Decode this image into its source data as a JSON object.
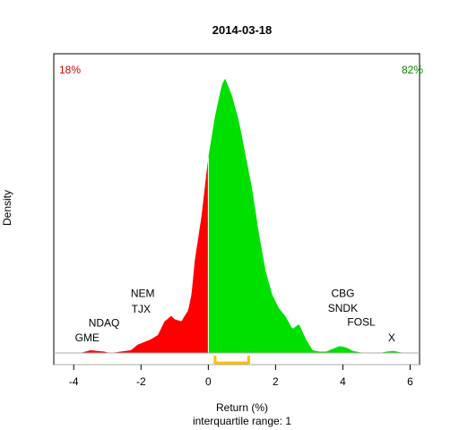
{
  "chart_data": {
    "type": "area",
    "title": "2014-03-18",
    "xlabel": "Return (%)",
    "ylabel": "Density",
    "subtitle": "interquartile range: 1",
    "xlim": [
      -4.3,
      6.2
    ],
    "ylim": [
      0,
      0.42
    ],
    "xticks": [
      -4,
      -2,
      0,
      2,
      4,
      6
    ],
    "split_x": 0,
    "pct_left": "18%",
    "pct_right": "82%",
    "color_left": "#ff0000",
    "color_right": "#00e000",
    "color_left_text": "#cc0000",
    "color_right_text": "#008800",
    "iqr_range": [
      0.2,
      1.2
    ],
    "iqr_color": "#ffc000",
    "density_x": [
      -4.3,
      -3.8,
      -3.5,
      -3.3,
      -3.1,
      -2.9,
      -2.6,
      -2.3,
      -2.1,
      -1.9,
      -1.7,
      -1.5,
      -1.3,
      -1.1,
      -1.0,
      -0.8,
      -0.6,
      -0.5,
      -0.4,
      -0.2,
      0.0,
      0.2,
      0.4,
      0.5,
      0.7,
      0.9,
      1.1,
      1.3,
      1.5,
      1.7,
      1.9,
      2.1,
      2.3,
      2.5,
      2.7,
      2.9,
      3.1,
      3.3,
      3.5,
      3.7,
      3.9,
      4.1,
      4.3,
      4.5,
      4.7,
      4.9,
      5.1,
      5.3,
      5.5,
      5.7,
      5.9,
      6.2
    ],
    "density_y": [
      0.0,
      0.0,
      0.004,
      0.003,
      0.002,
      0.0,
      0.002,
      0.004,
      0.012,
      0.016,
      0.02,
      0.026,
      0.046,
      0.054,
      0.049,
      0.046,
      0.062,
      0.085,
      0.135,
      0.2,
      0.285,
      0.345,
      0.39,
      0.4,
      0.375,
      0.34,
      0.29,
      0.24,
      0.175,
      0.12,
      0.085,
      0.065,
      0.053,
      0.035,
      0.042,
      0.02,
      0.004,
      0.002,
      0.002,
      0.006,
      0.01,
      0.008,
      0.003,
      0.001,
      0.0,
      0.0,
      0.0,
      0.002,
      0.003,
      0.001,
      0.0,
      0.0
    ],
    "labels_left": [
      {
        "text": "GME",
        "x": -3.6,
        "y": 0.022
      },
      {
        "text": "NDAQ",
        "x": -3.1,
        "y": 0.044
      },
      {
        "text": "TJX",
        "x": -2.0,
        "y": 0.064
      },
      {
        "text": "NEM",
        "x": -1.95,
        "y": 0.087
      }
    ],
    "labels_right": [
      {
        "text": "CBG",
        "x": 4.0,
        "y": 0.087
      },
      {
        "text": "SNDK",
        "x": 4.0,
        "y": 0.065
      },
      {
        "text": "FOSL",
        "x": 4.55,
        "y": 0.045
      },
      {
        "text": "X",
        "x": 5.45,
        "y": 0.022
      }
    ]
  }
}
